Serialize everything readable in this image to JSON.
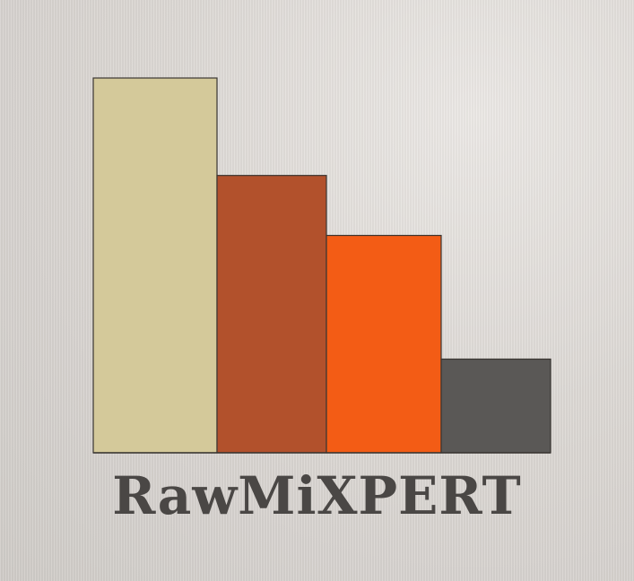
{
  "logo": {
    "name": "RawMiXPERT",
    "bars": [
      {
        "label": "bar-1",
        "value": 100,
        "color": "#d4c99a"
      },
      {
        "label": "bar-2",
        "value": 74,
        "color": "#b2512c"
      },
      {
        "label": "bar-3",
        "value": 58,
        "color": "#f35c15"
      },
      {
        "label": "bar-4",
        "value": 25,
        "color": "#5a5856"
      }
    ]
  }
}
